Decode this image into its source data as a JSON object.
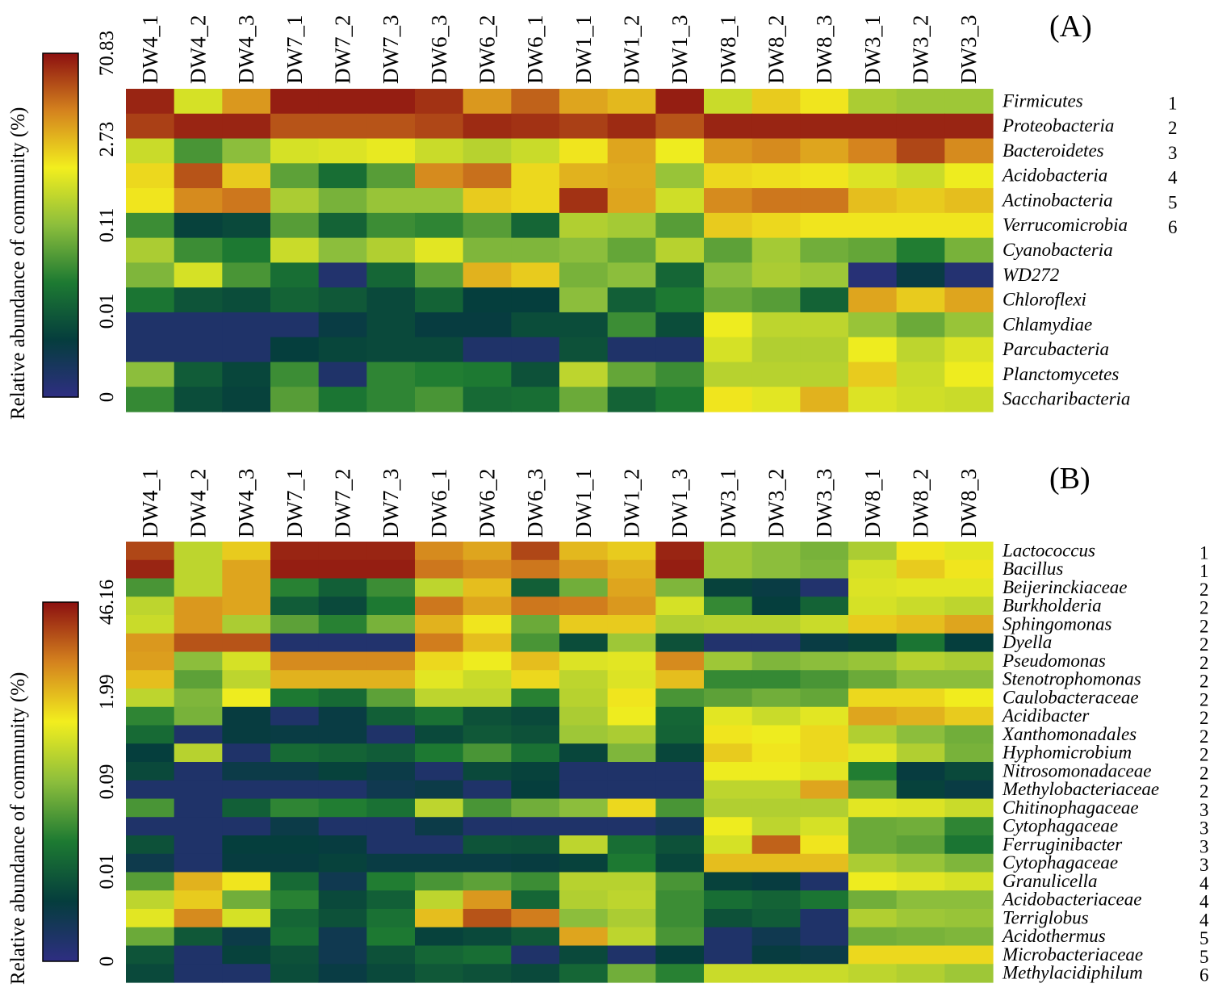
{
  "chart_data": [
    {
      "type": "heatmap",
      "panel_label": "(A)",
      "legend": {
        "title": "Relative abundance of community (%)",
        "tick_labels": [
          "0",
          "0.01",
          "0.11",
          "2.73",
          "70.83"
        ],
        "colors": [
          "#2e2e82",
          "#053d3d",
          "#1d7a32",
          "#8cbe3c",
          "#f2ee1e",
          "#d4821e",
          "#8c1010"
        ]
      },
      "columns": [
        "DW4_1",
        "DW4_2",
        "DW4_3",
        "DW7_1",
        "DW7_2",
        "DW7_3",
        "DW6_3",
        "DW6_2",
        "DW6_1",
        "DW1_1",
        "DW1_2",
        "DW1_3",
        "DW8_1",
        "DW8_2",
        "DW8_3",
        "DW3_1",
        "DW3_2",
        "DW3_3"
      ],
      "rows": [
        {
          "label": "Firmicutes",
          "group": "1"
        },
        {
          "label": "Proteobacteria",
          "group": "2"
        },
        {
          "label": "Bacteroidetes",
          "group": "3"
        },
        {
          "label": "Acidobacteria",
          "group": "4"
        },
        {
          "label": "Actinobacteria",
          "group": "5"
        },
        {
          "label": "Verrucomicrobia",
          "group": "6"
        },
        {
          "label": "Cyanobacteria",
          "group": ""
        },
        {
          "label": "WD272",
          "group": ""
        },
        {
          "label": "Chloroflexi",
          "group": ""
        },
        {
          "label": "Chlamydiae",
          "group": ""
        },
        {
          "label": "Parcubacteria",
          "group": ""
        },
        {
          "label": "Planctomycetes",
          "group": ""
        },
        {
          "label": "Saccharibacteria",
          "group": ""
        }
      ],
      "levels": [
        [
          0.97,
          0.62,
          0.8,
          0.98,
          0.98,
          0.98,
          0.95,
          0.8,
          0.88,
          0.78,
          0.75,
          0.98,
          0.6,
          0.72,
          0.68,
          0.55,
          0.53,
          0.53
        ],
        [
          0.93,
          0.97,
          0.97,
          0.9,
          0.9,
          0.9,
          0.92,
          0.96,
          0.95,
          0.93,
          0.96,
          0.9,
          0.97,
          0.97,
          0.97,
          0.97,
          0.97,
          0.97
        ],
        [
          0.6,
          0.4,
          0.5,
          0.62,
          0.63,
          0.65,
          0.6,
          0.57,
          0.6,
          0.68,
          0.78,
          0.66,
          0.8,
          0.82,
          0.78,
          0.83,
          0.92,
          0.82
        ],
        [
          0.7,
          0.9,
          0.72,
          0.43,
          0.3,
          0.42,
          0.82,
          0.86,
          0.7,
          0.76,
          0.77,
          0.52,
          0.7,
          0.69,
          0.68,
          0.63,
          0.6,
          0.66
        ],
        [
          0.68,
          0.82,
          0.85,
          0.55,
          0.47,
          0.52,
          0.52,
          0.72,
          0.7,
          0.95,
          0.78,
          0.61,
          0.82,
          0.85,
          0.85,
          0.74,
          0.72,
          0.74
        ],
        [
          0.38,
          0.18,
          0.2,
          0.42,
          0.27,
          0.38,
          0.36,
          0.42,
          0.28,
          0.56,
          0.54,
          0.42,
          0.72,
          0.7,
          0.68,
          0.68,
          0.68,
          0.68
        ],
        [
          0.55,
          0.38,
          0.33,
          0.6,
          0.5,
          0.56,
          0.64,
          0.48,
          0.48,
          0.5,
          0.44,
          0.57,
          0.43,
          0.54,
          0.46,
          0.44,
          0.34,
          0.47
        ],
        [
          0.48,
          0.62,
          0.4,
          0.3,
          0.05,
          0.28,
          0.43,
          0.76,
          0.72,
          0.47,
          0.5,
          0.28,
          0.5,
          0.55,
          0.53,
          0.03,
          0.15,
          0.04
        ],
        [
          0.32,
          0.23,
          0.21,
          0.27,
          0.24,
          0.2,
          0.27,
          0.17,
          0.17,
          0.5,
          0.26,
          0.33,
          0.45,
          0.42,
          0.27,
          0.78,
          0.72,
          0.78
        ],
        [
          0.06,
          0.06,
          0.06,
          0.06,
          0.15,
          0.2,
          0.16,
          0.16,
          0.21,
          0.21,
          0.38,
          0.21,
          0.66,
          0.58,
          0.58,
          0.52,
          0.45,
          0.52
        ],
        [
          0.06,
          0.06,
          0.06,
          0.17,
          0.19,
          0.2,
          0.2,
          0.06,
          0.06,
          0.22,
          0.06,
          0.06,
          0.62,
          0.56,
          0.56,
          0.66,
          0.58,
          0.63
        ],
        [
          0.5,
          0.25,
          0.19,
          0.38,
          0.06,
          0.36,
          0.34,
          0.33,
          0.22,
          0.58,
          0.44,
          0.38,
          0.57,
          0.57,
          0.57,
          0.72,
          0.6,
          0.66
        ],
        [
          0.37,
          0.21,
          0.18,
          0.42,
          0.32,
          0.36,
          0.4,
          0.29,
          0.3,
          0.45,
          0.27,
          0.33,
          0.68,
          0.64,
          0.76,
          0.63,
          0.61,
          0.6
        ]
      ]
    },
    {
      "type": "heatmap",
      "panel_label": "(B)",
      "legend": {
        "title": "Relative abundance of community (%)",
        "tick_labels": [
          "0",
          "0.01",
          "0.09",
          "1.99",
          "46.16"
        ],
        "colors": [
          "#2e2e82",
          "#053d3d",
          "#1d7a32",
          "#8cbe3c",
          "#f2ee1e",
          "#d4821e",
          "#8c1010"
        ]
      },
      "columns": [
        "DW4_1",
        "DW4_2",
        "DW4_3",
        "DW7_1",
        "DW7_2",
        "DW7_3",
        "DW6_1",
        "DW6_2",
        "DW6_3",
        "DW1_1",
        "DW1_2",
        "DW1_3",
        "DW3_1",
        "DW3_2",
        "DW3_3",
        "DW8_1",
        "DW8_2",
        "DW8_3"
      ],
      "rows": [
        {
          "label": "Lactococcus",
          "group": "1"
        },
        {
          "label": "Bacillus",
          "group": "1"
        },
        {
          "label": "Beijerinckiaceae",
          "group": "2"
        },
        {
          "label": "Burkholderia",
          "group": "2"
        },
        {
          "label": "Sphingomonas",
          "group": "2"
        },
        {
          "label": "Dyella",
          "group": "2"
        },
        {
          "label": "Pseudomonas",
          "group": "2"
        },
        {
          "label": "Stenotrophomonas",
          "group": "2"
        },
        {
          "label": "Caulobacteraceae",
          "group": "2"
        },
        {
          "label": "Acidibacter",
          "group": "2"
        },
        {
          "label": "Xanthomonadales",
          "group": "2"
        },
        {
          "label": "Hyphomicrobium",
          "group": "2"
        },
        {
          "label": "Nitrosomonadaceae",
          "group": "2"
        },
        {
          "label": "Methylobacteriaceae",
          "group": "2"
        },
        {
          "label": "Chitinophagaceae",
          "group": "3"
        },
        {
          "label": "Cytophagaceae",
          "group": "3"
        },
        {
          "label": "Ferruginibacter",
          "group": "3"
        },
        {
          "label": "Cytophagaceae",
          "group": "3"
        },
        {
          "label": "Granulicella",
          "group": "4"
        },
        {
          "label": "Acidobacteriaceae",
          "group": "4"
        },
        {
          "label": "Terriglobus",
          "group": "4"
        },
        {
          "label": "Acidothermus",
          "group": "5"
        },
        {
          "label": "Microbacteriaceae",
          "group": "5"
        },
        {
          "label": "Methylacidiphilum",
          "group": "6"
        }
      ],
      "levels": [
        [
          0.92,
          0.58,
          0.72,
          0.97,
          0.97,
          0.97,
          0.82,
          0.78,
          0.92,
          0.75,
          0.72,
          0.97,
          0.53,
          0.5,
          0.47,
          0.55,
          0.68,
          0.64
        ],
        [
          0.97,
          0.58,
          0.78,
          0.98,
          0.98,
          0.98,
          0.85,
          0.82,
          0.85,
          0.8,
          0.76,
          0.98,
          0.53,
          0.5,
          0.48,
          0.62,
          0.72,
          0.68
        ],
        [
          0.4,
          0.58,
          0.78,
          0.35,
          0.26,
          0.38,
          0.58,
          0.74,
          0.26,
          0.46,
          0.78,
          0.48,
          0.18,
          0.15,
          0.05,
          0.63,
          0.64,
          0.64
        ],
        [
          0.58,
          0.8,
          0.78,
          0.25,
          0.2,
          0.33,
          0.85,
          0.78,
          0.85,
          0.84,
          0.8,
          0.62,
          0.37,
          0.17,
          0.27,
          0.62,
          0.6,
          0.58
        ],
        [
          0.6,
          0.8,
          0.55,
          0.43,
          0.35,
          0.47,
          0.76,
          0.68,
          0.45,
          0.72,
          0.72,
          0.56,
          0.57,
          0.57,
          0.6,
          0.72,
          0.74,
          0.78
        ],
        [
          0.8,
          0.9,
          0.9,
          0.05,
          0.05,
          0.05,
          0.84,
          0.74,
          0.4,
          0.21,
          0.53,
          0.22,
          0.05,
          0.05,
          0.15,
          0.18,
          0.32,
          0.17
        ],
        [
          0.79,
          0.5,
          0.62,
          0.82,
          0.82,
          0.82,
          0.7,
          0.66,
          0.74,
          0.63,
          0.64,
          0.82,
          0.53,
          0.48,
          0.5,
          0.52,
          0.57,
          0.55
        ],
        [
          0.74,
          0.43,
          0.58,
          0.76,
          0.76,
          0.76,
          0.64,
          0.6,
          0.7,
          0.58,
          0.63,
          0.74,
          0.37,
          0.37,
          0.4,
          0.45,
          0.5,
          0.5
        ],
        [
          0.58,
          0.48,
          0.66,
          0.33,
          0.29,
          0.43,
          0.58,
          0.58,
          0.35,
          0.57,
          0.68,
          0.4,
          0.43,
          0.46,
          0.44,
          0.7,
          0.7,
          0.67
        ],
        [
          0.36,
          0.47,
          0.16,
          0.06,
          0.15,
          0.26,
          0.31,
          0.22,
          0.2,
          0.55,
          0.66,
          0.28,
          0.64,
          0.6,
          0.64,
          0.78,
          0.76,
          0.72
        ],
        [
          0.29,
          0.06,
          0.16,
          0.15,
          0.15,
          0.06,
          0.2,
          0.24,
          0.22,
          0.53,
          0.55,
          0.27,
          0.68,
          0.66,
          0.7,
          0.56,
          0.5,
          0.46
        ],
        [
          0.17,
          0.57,
          0.06,
          0.29,
          0.27,
          0.25,
          0.33,
          0.4,
          0.31,
          0.19,
          0.48,
          0.19,
          0.72,
          0.68,
          0.7,
          0.64,
          0.56,
          0.47
        ],
        [
          0.2,
          0.06,
          0.14,
          0.14,
          0.18,
          0.14,
          0.06,
          0.2,
          0.18,
          0.06,
          0.06,
          0.06,
          0.66,
          0.66,
          0.64,
          0.34,
          0.16,
          0.2
        ],
        [
          0.06,
          0.06,
          0.06,
          0.06,
          0.06,
          0.12,
          0.14,
          0.06,
          0.17,
          0.06,
          0.06,
          0.06,
          0.58,
          0.58,
          0.78,
          0.43,
          0.18,
          0.15
        ],
        [
          0.4,
          0.06,
          0.26,
          0.36,
          0.34,
          0.31,
          0.58,
          0.4,
          0.46,
          0.5,
          0.7,
          0.4,
          0.56,
          0.56,
          0.56,
          0.64,
          0.63,
          0.6
        ],
        [
          0.06,
          0.06,
          0.06,
          0.14,
          0.06,
          0.06,
          0.14,
          0.06,
          0.06,
          0.06,
          0.06,
          0.1,
          0.66,
          0.58,
          0.62,
          0.45,
          0.46,
          0.36
        ],
        [
          0.22,
          0.06,
          0.17,
          0.17,
          0.16,
          0.06,
          0.06,
          0.23,
          0.22,
          0.58,
          0.3,
          0.22,
          0.62,
          0.88,
          0.68,
          0.45,
          0.43,
          0.32
        ],
        [
          0.13,
          0.06,
          0.16,
          0.16,
          0.18,
          0.15,
          0.15,
          0.15,
          0.16,
          0.18,
          0.33,
          0.19,
          0.74,
          0.74,
          0.74,
          0.55,
          0.52,
          0.48
        ],
        [
          0.42,
          0.76,
          0.68,
          0.29,
          0.12,
          0.34,
          0.4,
          0.43,
          0.38,
          0.57,
          0.57,
          0.4,
          0.18,
          0.16,
          0.06,
          0.66,
          0.64,
          0.62
        ],
        [
          0.58,
          0.72,
          0.46,
          0.35,
          0.2,
          0.26,
          0.58,
          0.8,
          0.28,
          0.56,
          0.58,
          0.38,
          0.3,
          0.27,
          0.32,
          0.46,
          0.5,
          0.5
        ],
        [
          0.64,
          0.82,
          0.62,
          0.28,
          0.22,
          0.31,
          0.74,
          0.9,
          0.84,
          0.5,
          0.55,
          0.38,
          0.22,
          0.25,
          0.06,
          0.56,
          0.53,
          0.52
        ],
        [
          0.45,
          0.24,
          0.14,
          0.3,
          0.12,
          0.33,
          0.18,
          0.2,
          0.24,
          0.78,
          0.58,
          0.4,
          0.06,
          0.12,
          0.06,
          0.46,
          0.47,
          0.48
        ],
        [
          0.23,
          0.06,
          0.18,
          0.22,
          0.12,
          0.22,
          0.28,
          0.3,
          0.06,
          0.2,
          0.06,
          0.17,
          0.06,
          0.16,
          0.14,
          0.7,
          0.7,
          0.7
        ],
        [
          0.2,
          0.06,
          0.06,
          0.21,
          0.15,
          0.2,
          0.24,
          0.22,
          0.2,
          0.28,
          0.46,
          0.35,
          0.6,
          0.6,
          0.6,
          0.58,
          0.56,
          0.53
        ]
      ]
    }
  ]
}
